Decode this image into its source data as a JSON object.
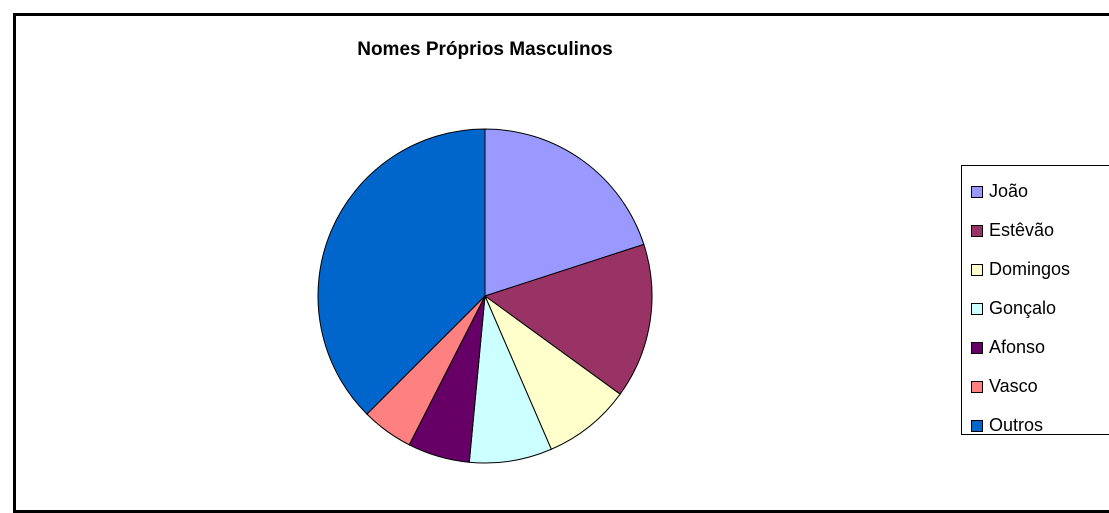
{
  "chart_data": {
    "type": "pie",
    "title": "Nomes Próprios Masculinos",
    "legend_position": "right",
    "start_angle_deg": 0,
    "direction": "clockwise",
    "categories": [
      "João",
      "Estêvão",
      "Domingos",
      "Gonçalo",
      "Afonso",
      "Vasco",
      "Outros"
    ],
    "values": [
      20,
      15,
      8.5,
      8,
      6,
      5,
      37.5
    ],
    "unit": "%",
    "colors": [
      "#9999FF",
      "#993366",
      "#FFFFCC",
      "#CCFFFF",
      "#660066",
      "#FF8080",
      "#0066CC"
    ]
  }
}
